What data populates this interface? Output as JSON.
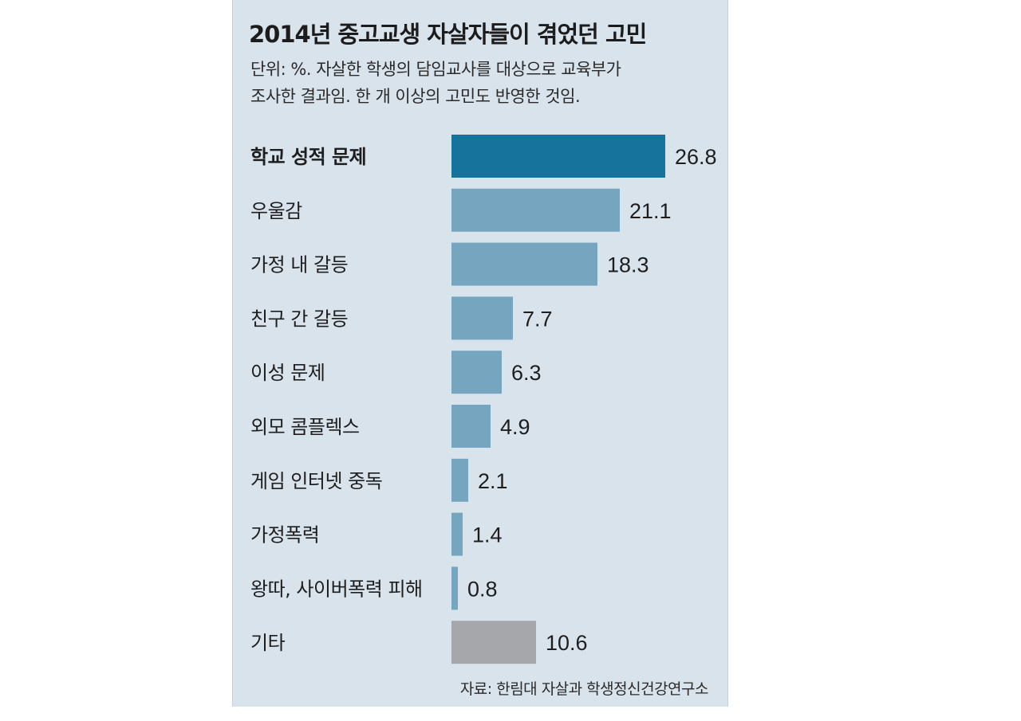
{
  "chart_data": {
    "type": "bar",
    "orientation": "horizontal",
    "title": "2014년 중고교생 자살자들이 겪었던 고민",
    "subtitle_lines": [
      "단위: %. 자살한 학생의 담임교사를 대상으로 교육부가",
      "조사한 결과임. 한 개 이상의 고민도 반영한 것임."
    ],
    "categories": [
      "학교 성적 문제",
      "우울감",
      "가정 내 갈등",
      "친구 간 갈등",
      "이성 문제",
      "외모 콤플렉스",
      "게임 인터넷 중독",
      "가정폭력",
      "왕따, 사이버폭력 피해",
      "기타"
    ],
    "values": [
      26.8,
      21.1,
      18.3,
      7.7,
      6.3,
      4.9,
      2.1,
      1.4,
      0.8,
      10.6
    ],
    "value_labels": [
      "26.8",
      "21.1",
      "18.3",
      "7.7",
      "6.3",
      "4.9",
      "2.1",
      "1.4",
      "0.8",
      "10.6"
    ],
    "xlim": [
      0,
      26.8
    ],
    "grid": false,
    "source": "자료: 한림대 자살과 학생정신건강연구소"
  },
  "colors": {
    "highlight": "#15739c",
    "normal": "#76a5bf",
    "other": "#a6a7ab",
    "background": "#d9e3ec"
  }
}
